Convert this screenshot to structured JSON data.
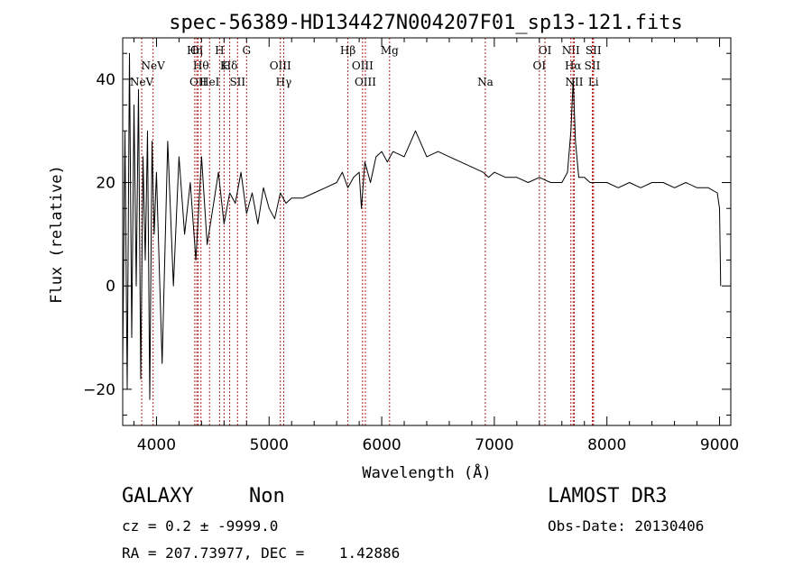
{
  "chart_data": {
    "type": "line",
    "title": "spec-56389-HD134427N004207F01_sp13-121.fits",
    "xlabel": "Wavelength (Å)",
    "ylabel": "Flux (relative)",
    "xlim": [
      3700,
      9100
    ],
    "ylim": [
      -27,
      48
    ],
    "x_ticks": [
      4000,
      5000,
      6000,
      7000,
      8000,
      9000
    ],
    "y_ticks": [
      -20,
      0,
      20,
      40
    ],
    "series": [
      {
        "name": "flux",
        "x": [
          3700,
          3720,
          3740,
          3760,
          3780,
          3800,
          3820,
          3840,
          3860,
          3880,
          3900,
          3920,
          3940,
          3960,
          3980,
          4000,
          4050,
          4100,
          4150,
          4200,
          4250,
          4300,
          4350,
          4400,
          4450,
          4500,
          4550,
          4600,
          4650,
          4700,
          4750,
          4800,
          4850,
          4900,
          4950,
          5000,
          5050,
          5100,
          5150,
          5200,
          5300,
          5400,
          5500,
          5600,
          5650,
          5700,
          5750,
          5800,
          5820,
          5850,
          5900,
          5950,
          6000,
          6050,
          6100,
          6200,
          6300,
          6400,
          6500,
          6600,
          6700,
          6800,
          6900,
          6950,
          7000,
          7100,
          7200,
          7300,
          7400,
          7500,
          7600,
          7650,
          7680,
          7700,
          7720,
          7750,
          7800,
          7850,
          7900,
          8000,
          8100,
          8200,
          8300,
          8400,
          8500,
          8600,
          8700,
          8800,
          8900,
          8980,
          9000,
          9010
        ],
        "y": [
          -15,
          30,
          -20,
          45,
          -10,
          35,
          0,
          38,
          -18,
          25,
          5,
          30,
          -22,
          28,
          10,
          22,
          -15,
          28,
          0,
          25,
          10,
          20,
          5,
          25,
          8,
          15,
          22,
          12,
          18,
          16,
          22,
          14,
          18,
          12,
          19,
          15,
          13,
          18,
          16,
          17,
          17,
          18,
          19,
          20,
          22,
          19,
          21,
          22,
          15,
          24,
          20,
          25,
          26,
          24,
          26,
          25,
          30,
          25,
          26,
          25,
          24,
          23,
          22,
          21,
          22,
          21,
          21,
          20,
          21,
          20,
          20,
          22,
          30,
          40,
          28,
          21,
          21,
          20,
          20,
          20,
          19,
          20,
          19,
          20,
          20,
          19,
          20,
          19,
          19,
          18,
          15,
          0
        ]
      }
    ],
    "line_markers": [
      {
        "wl": 3869,
        "label": "NeV",
        "row": 2
      },
      {
        "wl": 3970,
        "label": "NeV",
        "row": 1
      },
      {
        "wl": 4358,
        "label": "OI",
        "row": 0
      },
      {
        "wl": 4370,
        "label": "OII",
        "row": 2
      },
      {
        "wl": 4340,
        "label": "Hη",
        "row": 0
      },
      {
        "wl": 4395,
        "label": "Hθ",
        "row": 1
      },
      {
        "wl": 4471,
        "label": "HeI",
        "row": 2
      },
      {
        "wl": 4560,
        "label": "H",
        "row": 0
      },
      {
        "wl": 4600,
        "label": "K",
        "row": 1
      },
      {
        "wl": 4650,
        "label": "Hδ",
        "row": 1
      },
      {
        "wl": 4720,
        "label": "SII",
        "row": 2
      },
      {
        "wl": 4800,
        "label": "G",
        "row": 0
      },
      {
        "wl": 5100,
        "label": "OIII",
        "row": 1
      },
      {
        "wl": 5130,
        "label": "Hγ",
        "row": 2
      },
      {
        "wl": 5700,
        "label": "Hβ",
        "row": 0
      },
      {
        "wl": 5830,
        "label": "OIII",
        "row": 1
      },
      {
        "wl": 5855,
        "label": "OIII",
        "row": 2
      },
      {
        "wl": 6070,
        "label": "Mg",
        "row": 0
      },
      {
        "wl": 6920,
        "label": "Na",
        "row": 2
      },
      {
        "wl": 7450,
        "label": "OI",
        "row": 0
      },
      {
        "wl": 7400,
        "label": "OI",
        "row": 1
      },
      {
        "wl": 7680,
        "label": "NII",
        "row": 0
      },
      {
        "wl": 7700,
        "label": "Hα",
        "row": 1
      },
      {
        "wl": 7710,
        "label": "NII",
        "row": 2
      },
      {
        "wl": 7880,
        "label": "SII",
        "row": 0
      },
      {
        "wl": 7870,
        "label": "SII",
        "row": 1
      },
      {
        "wl": 7880,
        "label": "Li",
        "row": 2
      }
    ]
  },
  "info": {
    "object_type": "GALAXY",
    "subclass": "Non",
    "survey": "LAMOST DR3",
    "cz": "cz = 0.2 ± -9999.0",
    "obs_date": "Obs-Date: 20130406",
    "coords": "RA = 207.73977, DEC =    1.42886"
  }
}
